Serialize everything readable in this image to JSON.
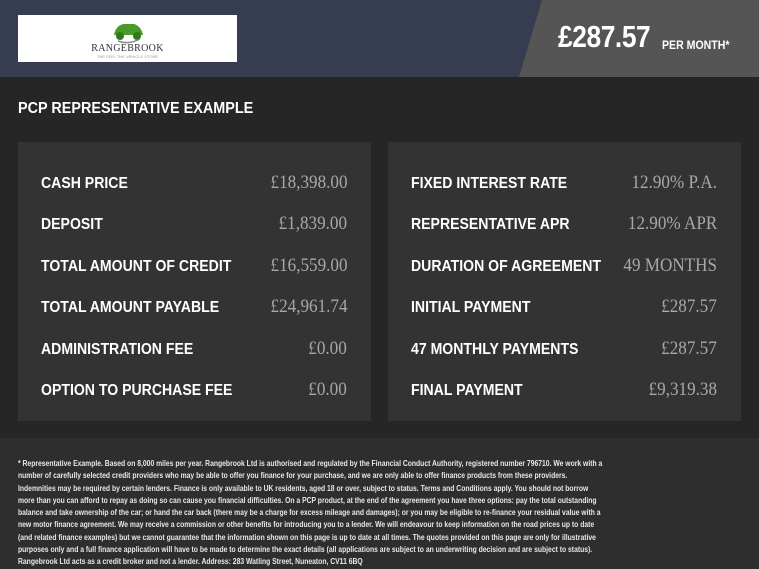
{
  "header": {
    "logo_name": "RANGEBROOK",
    "logo_tagline": "THE FEEL THE VEHICLE STORE",
    "price": "£287.57",
    "per_month": "PER MONTH*"
  },
  "title": "PCP REPRESENTATIVE EXAMPLE",
  "left_rows": [
    {
      "label": "CASH PRICE",
      "value": "£18,398.00"
    },
    {
      "label": "DEPOSIT",
      "value": "£1,839.00"
    },
    {
      "label": "TOTAL AMOUNT OF CREDIT",
      "value": "£16,559.00"
    },
    {
      "label": "TOTAL AMOUNT PAYABLE",
      "value": "£24,961.74"
    },
    {
      "label": "ADMINISTRATION FEE",
      "value": "£0.00"
    },
    {
      "label": "OPTION TO PURCHASE FEE",
      "value": "£0.00"
    }
  ],
  "right_rows": [
    {
      "label": "FIXED INTEREST RATE",
      "value": "12.90% P.A."
    },
    {
      "label": "REPRESENTATIVE APR",
      "value": "12.90% APR"
    },
    {
      "label": "DURATION OF AGREEMENT",
      "value": "49 MONTHS"
    },
    {
      "label": "INITIAL PAYMENT",
      "value": "£287.57"
    },
    {
      "label": "47 MONTHLY PAYMENTS",
      "value": "£287.57"
    },
    {
      "label": "FINAL PAYMENT",
      "value": "£9,319.38"
    }
  ],
  "disclaimer": "* Representative Example. Based on 8,000 miles per year. Rangebrook Ltd is authorised and regulated by the Financial Conduct Authority, registered number 796710. We work with a number of carefully selected credit providers who may be able to offer you finance for your purchase, and we are only able to offer finance products from these providers. Indemnities may be required by certain lenders. Finance is only available to UK residents, aged 18 or over, subject to status. Terms and Conditions apply. You should not borrow more than you can afford to repay as doing so can cause you financial difficulties. On a PCP product, at the end of the agreement you have three options: pay the total outstanding balance and take ownership of the car; or hand the car back (there may be a charge for excess mileage and damages); or you may be eligible to re-finance your residual value with a new motor finance agreement. We may receive a commission or other benefits for introducing you to a lender. We will endeavour to keep information on the road prices up to date (and related finance examples) but we cannot guarantee that the information shown on this page is up to date at all times. The quotes provided on this page are only for illustrative purposes only and a full finance application will have to be made to determine the exact details (all applications are subject to an underwriting decision and are subject to status). Rangebrook Ltd acts as a credit broker and not a lender. Address: 283 Watling Street, Nuneaton, CV11 6BQ",
  "colors": {
    "header": "#363d50",
    "price_box": "#555555",
    "card": "#333333",
    "background": "#262626"
  }
}
